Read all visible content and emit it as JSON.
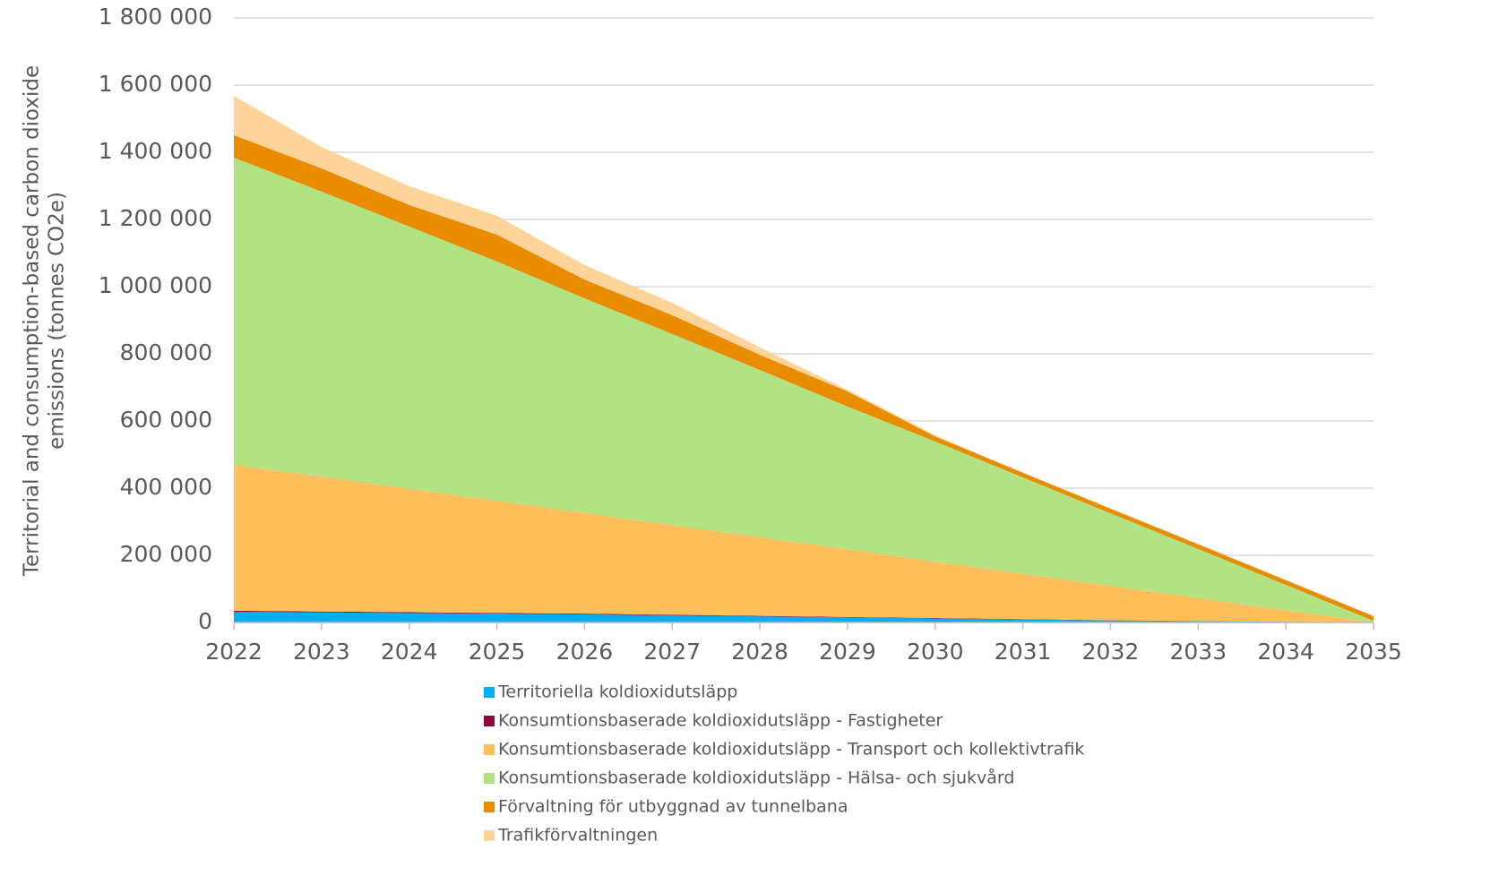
{
  "chart_data": {
    "type": "stacked_area",
    "ylabel": [
      "Territorial and consumption-based carbon dioxide",
      "emissions (tonnes CO2e)"
    ],
    "categories": [
      "2022",
      "2023",
      "2024",
      "2025",
      "2026",
      "2027",
      "2028",
      "2029",
      "2030",
      "2031",
      "2032",
      "2033",
      "2034",
      "2035"
    ],
    "ylim": [
      0,
      1800000
    ],
    "yticks": [
      0,
      {
        "value": 200000,
        "label": "200 000"
      },
      {
        "value": 400000,
        "label": "400 000"
      },
      {
        "value": 600000,
        "label": "600 000"
      },
      {
        "value": 800000,
        "label": "800 000"
      },
      {
        "value": 1000000,
        "label": "1 000 000"
      },
      {
        "value": 1200000,
        "label": "1 200 000"
      },
      {
        "value": 1400000,
        "label": "1 400 000"
      },
      {
        "value": 1600000,
        "label": "1 600 000"
      },
      {
        "value": 1800000,
        "label": "1 800 000"
      }
    ],
    "grid": true,
    "series": [
      {
        "name": "Territoriella koldioxidutsläpp",
        "color": "#00b0f0",
        "values": [
          32000,
          30000,
          28000,
          26000,
          24000,
          21000,
          18000,
          15000,
          12000,
          9000,
          6000,
          4000,
          2000,
          0
        ]
      },
      {
        "name": "Konsumtionsbaserade koldioxidutsläpp - Fastigheter",
        "color": "#8b0a3a",
        "values": [
          3000,
          2800,
          2600,
          2400,
          2200,
          2000,
          1800,
          1500,
          1200,
          1000,
          800,
          500,
          300,
          0
        ]
      },
      {
        "name": "Konsumtionsbaserade koldioxidutsläpp - Transport och kollektivtrafik",
        "color": "#ffbf5a",
        "values": [
          434000,
          401200,
          367400,
          333600,
          299800,
          267000,
          234200,
          201500,
          167800,
          135000,
          102200,
          68500,
          33700,
          0
        ]
      },
      {
        "name": "Konsumtionsbaserade koldioxidutsläpp - Hälsa- och sjukvård",
        "color": "#b3e283",
        "values": [
          915000,
          849000,
          781000,
          713000,
          639000,
          569000,
          498000,
          425000,
          358000,
          287000,
          216000,
          146000,
          76000,
          5000
        ]
      },
      {
        "name": "Förvaltning för utbyggnad av tunnelbana",
        "color": "#ea8c00",
        "values": [
          67000,
          69000,
          64000,
          80000,
          56000,
          56000,
          45000,
          45000,
          15000,
          14000,
          14000,
          14000,
          14000,
          14000
        ]
      },
      {
        "name": "Trafikförvaltningen",
        "color": "#ffd49a",
        "values": [
          117000,
          64000,
          56000,
          56000,
          43000,
          37000,
          22000,
          5000,
          3000,
          0,
          0,
          0,
          0,
          0
        ]
      }
    ]
  }
}
